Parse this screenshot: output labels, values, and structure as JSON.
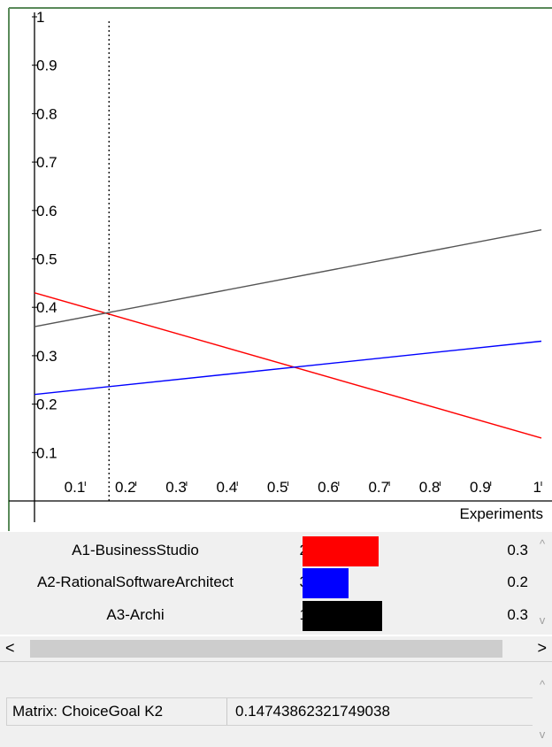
{
  "chart_data": {
    "type": "line",
    "xlabel": "Experiments",
    "x_ticks": [
      "0.1",
      "0.2",
      "0.3",
      "0.4",
      "0.5",
      "0.6",
      "0.7",
      "0.8",
      "0.9",
      "1"
    ],
    "y_ticks": [
      "0.1",
      "0.2",
      "0.3",
      "0.4",
      "0.5",
      "0.6",
      "0.7",
      "0.8",
      "0.9",
      "1"
    ],
    "xlim": [
      0,
      1
    ],
    "ylim": [
      0,
      1
    ],
    "marker_x": 0.147,
    "series": [
      {
        "color": "#ff0000",
        "x": [
          0,
          1
        ],
        "y": [
          0.43,
          0.13
        ]
      },
      {
        "color": "#0000ff",
        "x": [
          0,
          1
        ],
        "y": [
          0.22,
          0.33
        ]
      },
      {
        "color": "#555555",
        "x": [
          0,
          1
        ],
        "y": [
          0.36,
          0.56
        ]
      }
    ]
  },
  "alternatives": [
    {
      "name": "A1-BusinessStudio",
      "rank": "2",
      "color": "#ff0000",
      "value": "0.3",
      "level": 0.43
    },
    {
      "name": "A2-RationalSoftwareArchitect",
      "rank": "3",
      "color": "#0000ff",
      "value": "0.2",
      "level": 0.26
    },
    {
      "name": "A3-Archi",
      "rank": "1",
      "color": "#000000",
      "value": "0.3",
      "level": 0.45
    }
  ],
  "scroll": {
    "left": "<",
    "right": ">",
    "up": "^",
    "down": "v"
  },
  "info": {
    "label": "Matrix: ChoiceGoal K2",
    "value": "0.14743862321749038"
  }
}
